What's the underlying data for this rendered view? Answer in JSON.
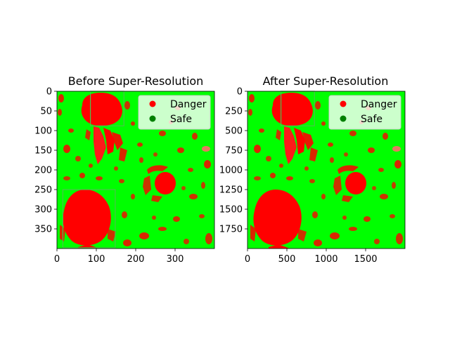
{
  "colors": {
    "danger": "#ff0000",
    "safe": "#00ff00",
    "safe_marker": "#008000",
    "highlight_box": "#4cc24c"
  },
  "chart_data": [
    {
      "type": "heatmap",
      "title": "Before Super-Resolution",
      "xlabel": "",
      "ylabel": "",
      "xlim": [
        0,
        400
      ],
      "ylim": [
        400,
        0
      ],
      "xticks": [
        0,
        100,
        200,
        300
      ],
      "yticks": [
        0,
        50,
        100,
        150,
        200,
        250,
        300,
        350
      ],
      "grid": false,
      "legend": {
        "placement": "upper-right",
        "entries": [
          {
            "label": "Danger",
            "color": "#ff0000",
            "marker": "circle"
          },
          {
            "label": "Safe",
            "color": "#008000",
            "marker": "circle"
          }
        ]
      },
      "classes": [
        "Danger",
        "Safe"
      ],
      "highlight_boxes": [
        {
          "x": [
            85,
            170
          ],
          "y": [
            0,
            88
          ]
        },
        {
          "x": [
            15,
            148
          ],
          "y": [
            250,
            398
          ]
        }
      ]
    },
    {
      "type": "heatmap",
      "title": "After Super-Resolution",
      "xlabel": "",
      "ylabel": "",
      "xlim": [
        0,
        2000
      ],
      "ylim": [
        2000,
        0
      ],
      "xticks": [
        0,
        500,
        1000,
        1500
      ],
      "yticks": [
        0,
        250,
        500,
        750,
        1000,
        1250,
        1500,
        1750
      ],
      "grid": false,
      "legend": {
        "placement": "upper-right",
        "entries": [
          {
            "label": "Danger",
            "color": "#ff0000",
            "marker": "circle"
          },
          {
            "label": "Safe",
            "color": "#008000",
            "marker": "circle"
          }
        ]
      },
      "classes": [
        "Danger",
        "Safe"
      ],
      "highlight_boxes": [
        {
          "x": [
            425,
            850
          ],
          "y": [
            0,
            440
          ]
        }
      ]
    }
  ]
}
